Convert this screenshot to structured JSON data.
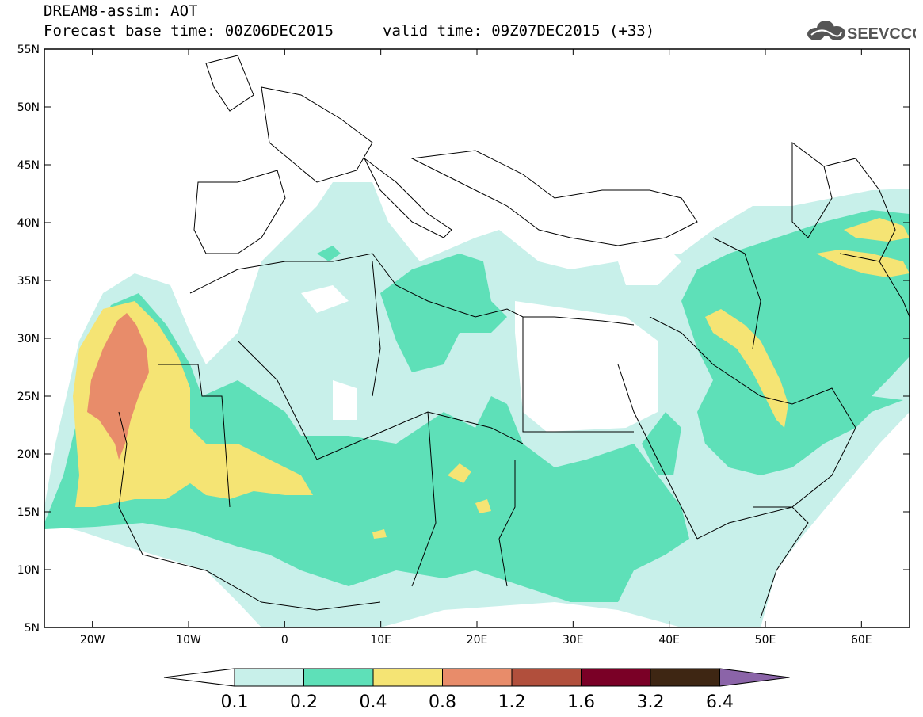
{
  "header": {
    "model_title": "DREAM8-assim: AOT",
    "forecast_base": "Forecast base time: 00Z06DEC2015",
    "valid_time": "valid time: 09Z07DEC2015 (+33)",
    "logo_text": "SEEVCCC"
  },
  "map": {
    "lon_range": [
      -25,
      65
    ],
    "lat_range": [
      5,
      55
    ],
    "lat_ticks": [
      "55N",
      "50N",
      "45N",
      "40N",
      "35N",
      "30N",
      "25N",
      "20N",
      "15N",
      "10N",
      "5N"
    ],
    "lon_ticks": [
      "20W",
      "10W",
      "0",
      "10E",
      "20E",
      "30E",
      "40E",
      "50E",
      "60E"
    ]
  },
  "colorbar": {
    "levels": [
      "0.1",
      "0.2",
      "0.4",
      "0.8",
      "1.2",
      "1.6",
      "3.2",
      "6.4"
    ],
    "colors": {
      "below": "#ffffff",
      "c1": "#c8f0ea",
      "c2": "#5ee0b8",
      "c3": "#f5e474",
      "c4": "#e88c6a",
      "c5": "#b14f3c",
      "c6": "#7a0026",
      "c7": "#3e2613",
      "above": "#8b64a8"
    }
  },
  "colors": {
    "very_light": "#c8f0ea",
    "light": "#5ee0b8",
    "yellow": "#f5e474",
    "orange": "#e88c6a",
    "border": "#000000"
  }
}
